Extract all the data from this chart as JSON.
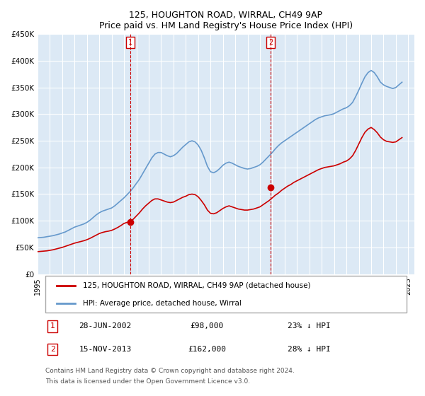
{
  "title": "125, HOUGHTON ROAD, WIRRAL, CH49 9AP",
  "subtitle": "Price paid vs. HM Land Registry's House Price Index (HPI)",
  "ylabel": "",
  "background_color": "#dce9f5",
  "plot_bg_color": "#dce9f5",
  "ylim": [
    0,
    450000
  ],
  "yticks": [
    0,
    50000,
    100000,
    150000,
    200000,
    250000,
    300000,
    350000,
    400000,
    450000
  ],
  "ytick_labels": [
    "£0",
    "£50K",
    "£100K",
    "£150K",
    "£200K",
    "£250K",
    "£300K",
    "£350K",
    "£400K",
    "£450K"
  ],
  "x_start_year": 1995,
  "x_end_year": 2025,
  "sale1_date": "28-JUN-2002",
  "sale1_price": 98000,
  "sale1_label": "1",
  "sale1_x": 2002.5,
  "sale2_date": "15-NOV-2013",
  "sale2_price": 162000,
  "sale2_label": "2",
  "sale2_x": 2013.88,
  "red_line_color": "#cc0000",
  "blue_line_color": "#6699cc",
  "vline_color": "#cc0000",
  "legend_label_red": "125, HOUGHTON ROAD, WIRRAL, CH49 9AP (detached house)",
  "legend_label_blue": "HPI: Average price, detached house, Wirral",
  "footer1": "Contains HM Land Registry data © Crown copyright and database right 2024.",
  "footer2": "This data is licensed under the Open Government Licence v3.0.",
  "table_row1": [
    "1",
    "28-JUN-2002",
    "£98,000",
    "23% ↓ HPI"
  ],
  "table_row2": [
    "2",
    "15-NOV-2013",
    "£162,000",
    "28% ↓ HPI"
  ],
  "hpi_data": {
    "years": [
      1995.0,
      1995.25,
      1995.5,
      1995.75,
      1996.0,
      1996.25,
      1996.5,
      1996.75,
      1997.0,
      1997.25,
      1997.5,
      1997.75,
      1998.0,
      1998.25,
      1998.5,
      1998.75,
      1999.0,
      1999.25,
      1999.5,
      1999.75,
      2000.0,
      2000.25,
      2000.5,
      2000.75,
      2001.0,
      2001.25,
      2001.5,
      2001.75,
      2002.0,
      2002.25,
      2002.5,
      2002.75,
      2003.0,
      2003.25,
      2003.5,
      2003.75,
      2004.0,
      2004.25,
      2004.5,
      2004.75,
      2005.0,
      2005.25,
      2005.5,
      2005.75,
      2006.0,
      2006.25,
      2006.5,
      2006.75,
      2007.0,
      2007.25,
      2007.5,
      2007.75,
      2008.0,
      2008.25,
      2008.5,
      2008.75,
      2009.0,
      2009.25,
      2009.5,
      2009.75,
      2010.0,
      2010.25,
      2010.5,
      2010.75,
      2011.0,
      2011.25,
      2011.5,
      2011.75,
      2012.0,
      2012.25,
      2012.5,
      2012.75,
      2013.0,
      2013.25,
      2013.5,
      2013.75,
      2014.0,
      2014.25,
      2014.5,
      2014.75,
      2015.0,
      2015.25,
      2015.5,
      2015.75,
      2016.0,
      2016.25,
      2016.5,
      2016.75,
      2017.0,
      2017.25,
      2017.5,
      2017.75,
      2018.0,
      2018.25,
      2018.5,
      2018.75,
      2019.0,
      2019.25,
      2019.5,
      2019.75,
      2020.0,
      2020.25,
      2020.5,
      2020.75,
      2021.0,
      2021.25,
      2021.5,
      2021.75,
      2022.0,
      2022.25,
      2022.5,
      2022.75,
      2023.0,
      2023.25,
      2023.5,
      2023.75,
      2024.0,
      2024.25,
      2024.5
    ],
    "values": [
      68000,
      68500,
      69000,
      70000,
      71000,
      72000,
      73500,
      75000,
      77000,
      79000,
      82000,
      85000,
      88000,
      90000,
      92000,
      94000,
      97000,
      101000,
      106000,
      111000,
      115000,
      118000,
      120000,
      122000,
      124000,
      128000,
      133000,
      138000,
      143000,
      149000,
      155000,
      162000,
      170000,
      178000,
      188000,
      198000,
      208000,
      218000,
      225000,
      228000,
      228000,
      225000,
      222000,
      220000,
      222000,
      226000,
      232000,
      238000,
      243000,
      248000,
      250000,
      248000,
      242000,
      232000,
      218000,
      202000,
      192000,
      190000,
      193000,
      198000,
      204000,
      208000,
      210000,
      208000,
      205000,
      202000,
      200000,
      198000,
      197000,
      198000,
      200000,
      202000,
      205000,
      210000,
      216000,
      222000,
      228000,
      235000,
      241000,
      246000,
      250000,
      254000,
      258000,
      262000,
      266000,
      270000,
      274000,
      278000,
      282000,
      286000,
      290000,
      293000,
      295000,
      297000,
      298000,
      299000,
      301000,
      304000,
      307000,
      310000,
      312000,
      316000,
      322000,
      333000,
      345000,
      358000,
      370000,
      378000,
      382000,
      378000,
      370000,
      360000,
      355000,
      352000,
      350000,
      348000,
      350000,
      355000,
      360000
    ]
  },
  "red_data": {
    "years": [
      1995.0,
      1995.25,
      1995.5,
      1995.75,
      1996.0,
      1996.25,
      1996.5,
      1996.75,
      1997.0,
      1997.25,
      1997.5,
      1997.75,
      1998.0,
      1998.25,
      1998.5,
      1998.75,
      1999.0,
      1999.25,
      1999.5,
      1999.75,
      2000.0,
      2000.25,
      2000.5,
      2000.75,
      2001.0,
      2001.25,
      2001.5,
      2001.75,
      2002.0,
      2002.25,
      2002.5,
      2002.75,
      2003.0,
      2003.25,
      2003.5,
      2003.75,
      2004.0,
      2004.25,
      2004.5,
      2004.75,
      2005.0,
      2005.25,
      2005.5,
      2005.75,
      2006.0,
      2006.25,
      2006.5,
      2006.75,
      2007.0,
      2007.25,
      2007.5,
      2007.75,
      2008.0,
      2008.25,
      2008.5,
      2008.75,
      2009.0,
      2009.25,
      2009.5,
      2009.75,
      2010.0,
      2010.25,
      2010.5,
      2010.75,
      2011.0,
      2011.25,
      2011.5,
      2011.75,
      2012.0,
      2012.25,
      2012.5,
      2012.75,
      2013.0,
      2013.25,
      2013.5,
      2013.75,
      2014.0,
      2014.25,
      2014.5,
      2014.75,
      2015.0,
      2015.25,
      2015.5,
      2015.75,
      2016.0,
      2016.25,
      2016.5,
      2016.75,
      2017.0,
      2017.25,
      2017.5,
      2017.75,
      2018.0,
      2018.25,
      2018.5,
      2018.75,
      2019.0,
      2019.25,
      2019.5,
      2019.75,
      2020.0,
      2020.25,
      2020.5,
      2020.75,
      2021.0,
      2021.25,
      2021.5,
      2021.75,
      2022.0,
      2022.25,
      2022.5,
      2022.75,
      2023.0,
      2023.25,
      2023.5,
      2023.75,
      2024.0,
      2024.25,
      2024.5
    ],
    "values": [
      42000,
      42500,
      43000,
      43500,
      44500,
      45500,
      47000,
      48500,
      50000,
      52000,
      54000,
      56000,
      58000,
      59500,
      61000,
      62500,
      64500,
      67000,
      70000,
      73000,
      76000,
      78000,
      79500,
      80500,
      82000,
      84500,
      87500,
      91000,
      95000,
      97000,
      98000,
      103000,
      109000,
      115000,
      122000,
      128000,
      133000,
      138000,
      141000,
      141000,
      139000,
      137000,
      135000,
      134000,
      135000,
      138000,
      141000,
      144000,
      146000,
      149000,
      150000,
      149000,
      145000,
      138000,
      130000,
      120000,
      114000,
      113000,
      115000,
      119000,
      123000,
      126000,
      128000,
      126000,
      124000,
      122000,
      121000,
      120000,
      120000,
      121000,
      122000,
      124000,
      126000,
      130000,
      134000,
      138000,
      143000,
      148000,
      152000,
      157000,
      161000,
      165000,
      168000,
      172000,
      175000,
      178000,
      181000,
      184000,
      187000,
      190000,
      193000,
      196000,
      198000,
      200000,
      201000,
      202000,
      203000,
      205000,
      207000,
      210000,
      212000,
      216000,
      222000,
      232000,
      244000,
      256000,
      266000,
      272000,
      275000,
      271000,
      265000,
      257000,
      252000,
      249000,
      248000,
      247000,
      248000,
      252000,
      256000
    ]
  }
}
